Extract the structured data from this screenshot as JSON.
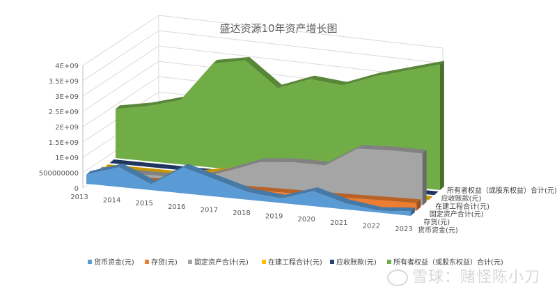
{
  "chart_data": {
    "type": "area",
    "title": "盛达资源10年资产增长图",
    "categories": [
      "2013",
      "2014",
      "2015",
      "2016",
      "2017",
      "2018",
      "2019",
      "2020",
      "2021",
      "2022",
      "2023"
    ],
    "y_ticks": [
      "0",
      "500000000",
      "1E+09",
      "1.5E+09",
      "2E+09",
      "2.5E+09",
      "3E+09",
      "3.5E+09",
      "4E+09"
    ],
    "ylim": [
      0,
      4000000000
    ],
    "legend_position": "bottom",
    "series": [
      {
        "name": "货币资金(元)",
        "color": "#5b9bd5",
        "values": [
          300000000,
          650000000,
          200000000,
          850000000,
          550000000,
          250000000,
          150000000,
          500000000,
          200000000,
          60000000,
          150000000
        ]
      },
      {
        "name": "存货(元)",
        "color": "#ed7d31",
        "values": [
          60000000,
          80000000,
          90000000,
          110000000,
          130000000,
          140000000,
          160000000,
          180000000,
          200000000,
          230000000,
          250000000
        ]
      },
      {
        "name": "固定资产合计(元)",
        "color": "#a5a5a5",
        "values": [
          100000000,
          110000000,
          120000000,
          130000000,
          500000000,
          900000000,
          1000000000,
          1000000000,
          1650000000,
          1700000000,
          1700000000
        ]
      },
      {
        "name": "在建工程合计(元)",
        "color": "#ffc000",
        "values": [
          10000000,
          15000000,
          20000000,
          150000000,
          350000000,
          50000000,
          30000000,
          20000000,
          20000000,
          20000000,
          20000000
        ]
      },
      {
        "name": "应收账款(元)",
        "color": "#264478",
        "values": [
          5000000,
          5000000,
          5000000,
          5000000,
          5000000,
          5000000,
          5000000,
          5000000,
          5000000,
          5000000,
          5000000
        ]
      },
      {
        "name": "所有者权益（或股东权益）合计(元)",
        "color": "#70ad47",
        "values": [
          1600000000,
          1800000000,
          2100000000,
          3400000000,
          3600000000,
          2800000000,
          3200000000,
          3100000000,
          3500000000,
          3800000000,
          4100000000
        ]
      }
    ]
  },
  "watermark": {
    "text": "雪球：赌怪陈小刀"
  }
}
